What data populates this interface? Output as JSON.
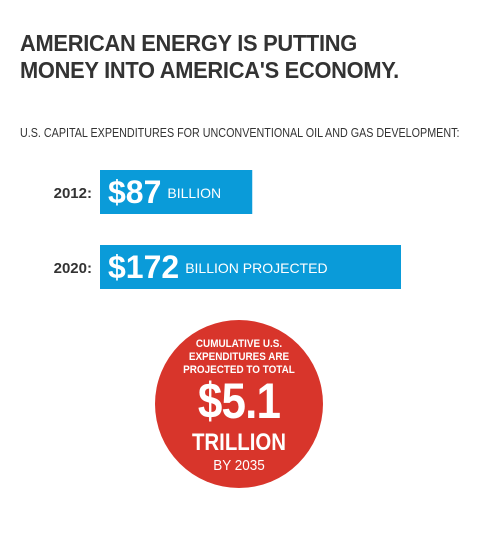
{
  "header": {
    "title_line1": "AMERICAN ENERGY IS PUTTING",
    "title_line2": "MONEY INTO AMERICA'S ECONOMY."
  },
  "subtitle": "U.S. CAPITAL EXPENDITURES FOR UNCONVENTIONAL OIL AND GAS DEVELOPMENT:",
  "chart_data": {
    "type": "bar",
    "orientation": "horizontal",
    "categories": [
      "2012:",
      "2020:"
    ],
    "values": [
      87,
      172
    ],
    "value_labels": [
      "$87",
      "$172"
    ],
    "unit_labels": [
      "BILLION",
      "BILLION PROJECTED"
    ],
    "units": "billions of US dollars",
    "bar_color": "#0a9bd9",
    "grid": false
  },
  "callout": {
    "lead": "CUMULATIVE U.S. EXPENDITURES ARE PROJECTED TO TOTAL",
    "value": "$5.1",
    "unit": "TRILLION",
    "by": "BY 2035",
    "color": "#d8352b"
  }
}
